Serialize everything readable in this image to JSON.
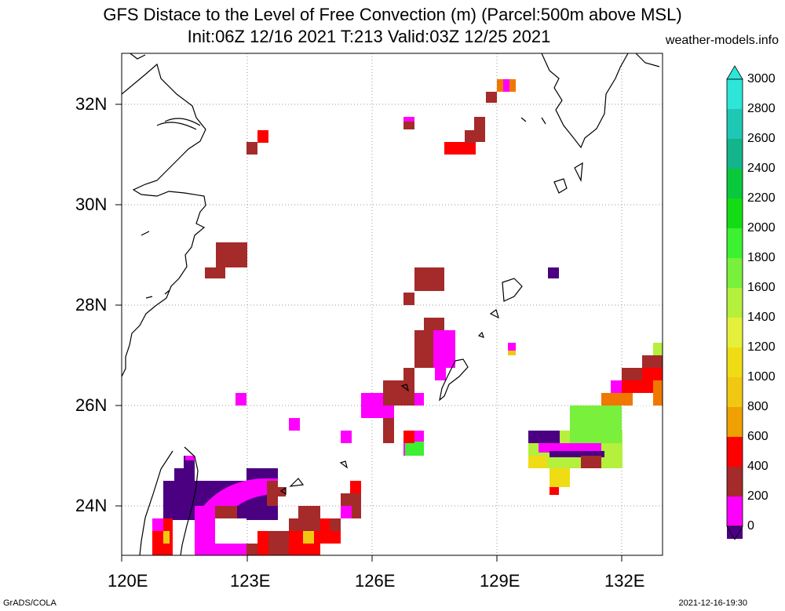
{
  "header": {
    "title_line1": "GFS Distace to the Level of Free Convection (m) (Parcel:500m above MSL)",
    "title_line2": "Init:06Z 12/16 2021 T:213 Valid:03Z 12/25 2021",
    "site": "weather-models.info"
  },
  "axes": {
    "lon_labels": [
      "120E",
      "123E",
      "126E",
      "129E",
      "132E"
    ],
    "lat_labels": [
      "32N",
      "30N",
      "28N",
      "26N",
      "24N"
    ]
  },
  "colorbar": {
    "labels": [
      "3000",
      "2800",
      "2600",
      "2400",
      "2200",
      "2000",
      "1800",
      "1600",
      "1400",
      "1200",
      "1000",
      "800",
      "600",
      "400",
      "200",
      "0"
    ],
    "colors": [
      "#2de6d8",
      "#1ec8b4",
      "#14b48c",
      "#0ac83c",
      "#14dc14",
      "#3cf032",
      "#78f03c",
      "#b4f03c",
      "#e6f03c",
      "#f0dc14",
      "#f0c814",
      "#f0a000",
      "#f07800",
      "#ff0000",
      "#a52a2a",
      "#ff00ff",
      "#4b0082"
    ]
  },
  "footer": {
    "left": "GrADS/COLA",
    "right": "2021-12-16-19:30"
  }
}
